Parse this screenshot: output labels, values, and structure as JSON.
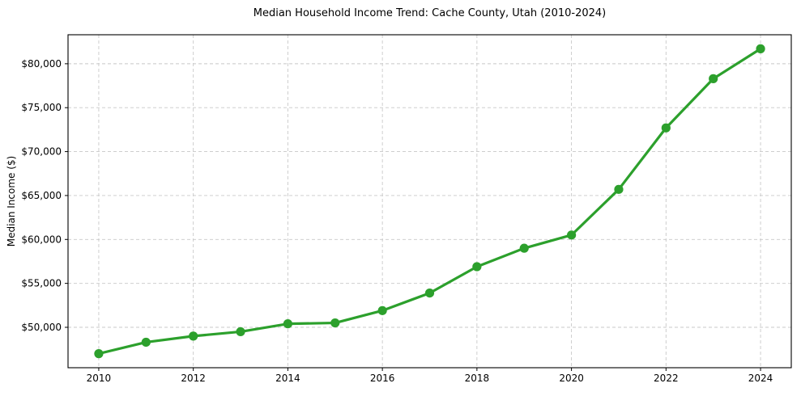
{
  "figure": {
    "background_color": "#ffffff",
    "grid_color": "#c8c8c8",
    "spine_color": "#000000",
    "text_color": "#000000"
  },
  "chart_data": {
    "type": "line",
    "title": "Median Household Income Trend: Cache County, Utah (2010-2024)",
    "xlabel": "",
    "ylabel": "Median Income ($)",
    "x": [
      2010,
      2011,
      2012,
      2013,
      2014,
      2015,
      2016,
      2017,
      2018,
      2019,
      2020,
      2021,
      2022,
      2023,
      2024
    ],
    "series": [
      {
        "name": "Median Household Income",
        "color": "#2ca02c",
        "values": [
          47000,
          48300,
          49000,
          49500,
          50400,
          50500,
          51900,
          53900,
          56900,
          59000,
          60500,
          65700,
          72700,
          78300,
          81700
        ]
      }
    ],
    "xticks": [
      2010,
      2012,
      2014,
      2016,
      2018,
      2020,
      2022,
      2024
    ],
    "xtick_labels": [
      "2010",
      "2012",
      "2014",
      "2016",
      "2018",
      "2020",
      "2022",
      "2024"
    ],
    "yticks": [
      50000,
      55000,
      60000,
      65000,
      70000,
      75000,
      80000
    ],
    "ytick_labels": [
      "$50,000",
      "$55,000",
      "$60,000",
      "$65,000",
      "$70,000",
      "$75,000",
      "$80,000"
    ],
    "xlim": [
      2009.35,
      2024.65
    ],
    "ylim": [
      45400,
      83300
    ],
    "grid": true,
    "grid_style": "dashed",
    "legend_position": "none",
    "marker": "circle",
    "marker_size": 5.6,
    "line_width": 3.2
  }
}
